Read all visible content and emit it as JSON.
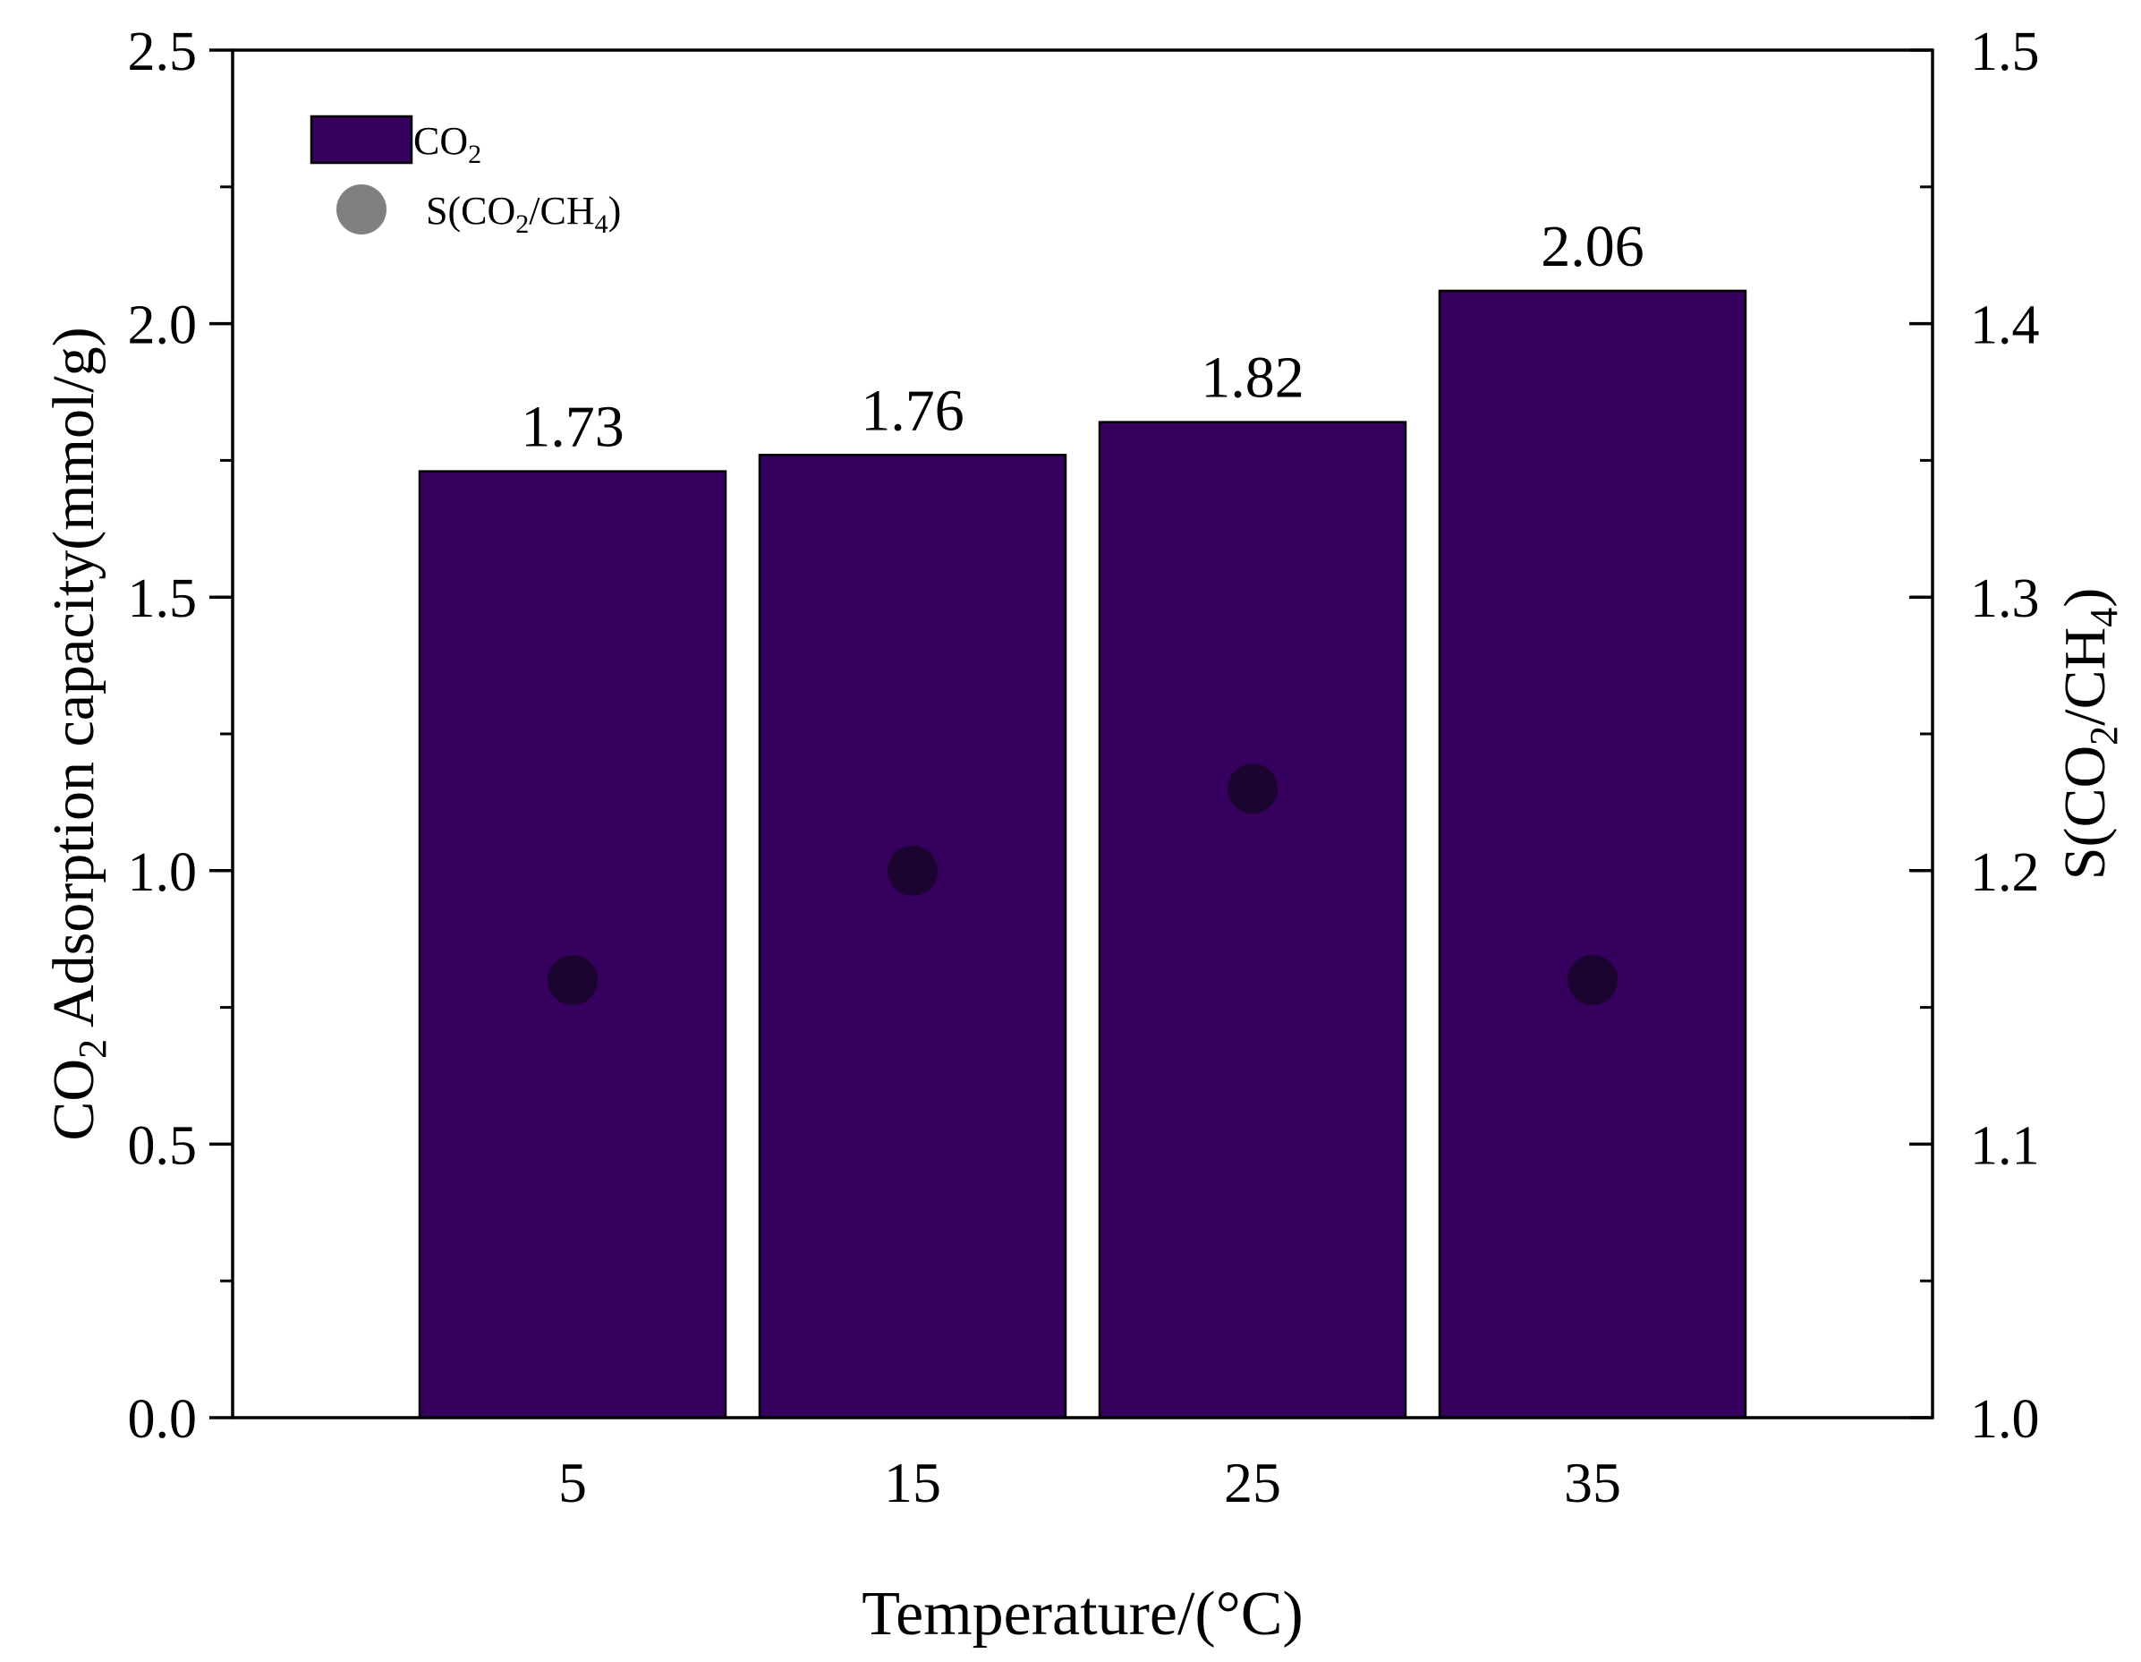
{
  "chart_data": {
    "type": "bar",
    "categories": [
      "5",
      "15",
      "25",
      "35"
    ],
    "xlabel": "Temperature/(°C)",
    "ylabel": {
      "prefix": "CO",
      "sub": "2",
      "suffix": " Adsorption capacity(mmol/g)"
    },
    "y2label": {
      "parts": [
        [
          "S(CO",
          false
        ],
        [
          "2",
          true
        ],
        [
          "/CH",
          false
        ],
        [
          "4",
          true
        ],
        [
          ")",
          false
        ]
      ]
    },
    "ylim": [
      0,
      2.5
    ],
    "y2lim": [
      1.0,
      1.5
    ],
    "yticks": [
      "0.0",
      "0.5",
      "1.0",
      "1.5",
      "2.0",
      "2.5"
    ],
    "y2ticks": [
      "1.0",
      "1.1",
      "1.2",
      "1.3",
      "1.4",
      "1.5"
    ],
    "grid": false,
    "legend_position": "top-left",
    "series": [
      {
        "name": "CO2",
        "legend_parts": [
          [
            "CO",
            false
          ],
          [
            "2",
            true
          ]
        ],
        "kind": "bar",
        "axis": "left",
        "values": [
          1.73,
          1.76,
          1.82,
          2.06
        ],
        "labels": [
          "1.73",
          "1.76",
          "1.82",
          "2.06"
        ],
        "color": "#36005e"
      },
      {
        "name": "S(CO2/CH4)",
        "legend_parts": [
          [
            "S(CO",
            false
          ],
          [
            "2",
            true
          ],
          [
            "/CH",
            false
          ],
          [
            "4",
            true
          ],
          [
            ")",
            false
          ]
        ],
        "kind": "scatter",
        "axis": "right",
        "values": [
          1.16,
          1.2,
          1.23,
          1.16
        ],
        "color": "#1b0530",
        "legend_color": "#808080"
      }
    ]
  }
}
